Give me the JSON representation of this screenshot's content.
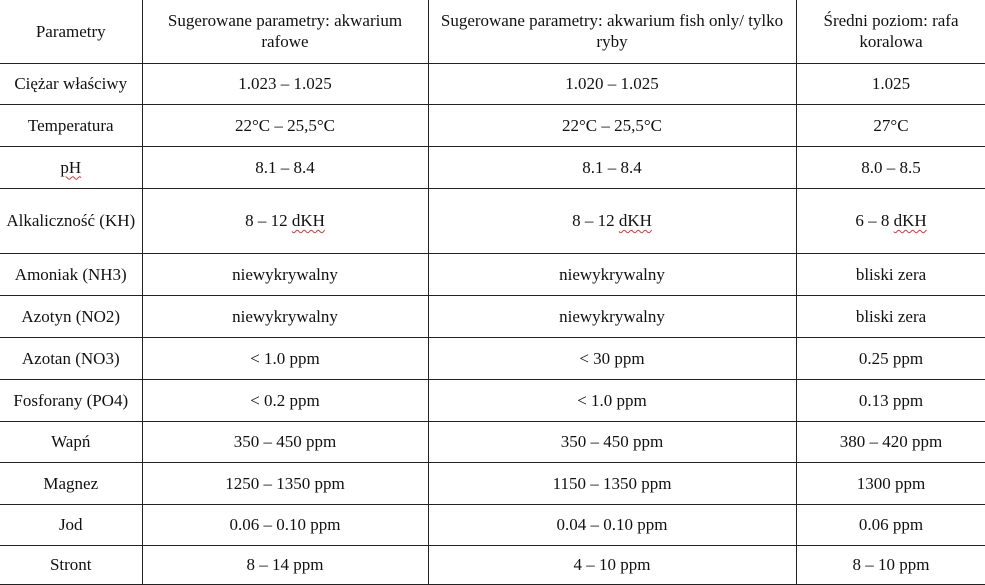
{
  "headers": [
    "Parametry",
    "Sugerowane parametry: akwarium rafowe",
    "Sugerowane parametry: akwarium fish only/ tylko ryby",
    "Średni poziom: rafa koralowa"
  ],
  "rows": [
    {
      "param": "Ciężar właściwy",
      "reef": "1.023 – 1.025",
      "fish": "1.020 – 1.025",
      "natural": "1.025"
    },
    {
      "param": "Temperatura",
      "reef": "22°C – 25,5°C",
      "fish": "22°C – 25,5°C",
      "natural": "27°C"
    },
    {
      "param": "pH",
      "reef": "8.1 – 8.4",
      "fish": "8.1 – 8.4",
      "natural": "8.0 – 8.5"
    },
    {
      "param": "Alkaliczność (KH)",
      "reef": "8 – 12 dKH",
      "fish": "8 – 12 dKH",
      "natural": "6 – 8 dKH"
    },
    {
      "param": "Amoniak (NH3)",
      "reef": "niewykrywalny",
      "fish": "niewykrywalny",
      "natural": "bliski zera"
    },
    {
      "param": "Azotyn (NO2)",
      "reef": "niewykrywalny",
      "fish": "niewykrywalny",
      "natural": "bliski zera"
    },
    {
      "param": "Azotan (NO3)",
      "reef": "< 1.0 ppm",
      "fish": "< 30 ppm",
      "natural": "0.25 ppm"
    },
    {
      "param": "Fosforany (PO4)",
      "reef": "< 0.2 ppm",
      "fish": "< 1.0 ppm",
      "natural": "0.13 ppm"
    },
    {
      "param": "Wapń",
      "reef": "350 – 450 ppm",
      "fish": "350 – 450 ppm",
      "natural": "380 – 420 ppm"
    },
    {
      "param": "Magnez",
      "reef": "1250 – 1350 ppm",
      "fish": "1150 – 1350 ppm",
      "natural": "1300 ppm"
    },
    {
      "param": "Jod",
      "reef": "0.06 – 0.10 ppm",
      "fish": "0.04 – 0.10 ppm",
      "natural": "0.06 ppm"
    },
    {
      "param": "Stront",
      "reef": "8 – 14 ppm",
      "fish": "4 – 10 ppm",
      "natural": "8 – 10 ppm"
    }
  ]
}
